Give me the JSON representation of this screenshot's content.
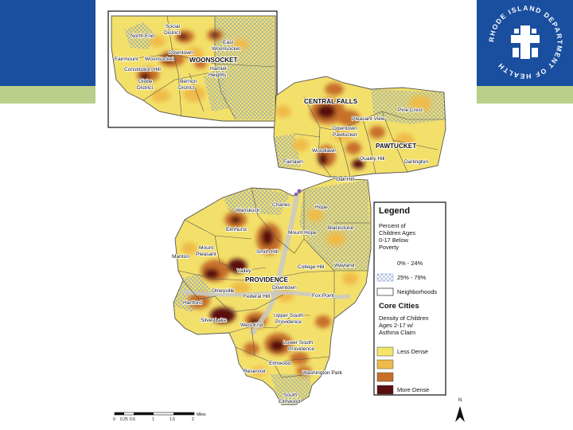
{
  "legend": {
    "title": "Legend",
    "poverty_heading": [
      "Percent of",
      "Children Ages",
      "0-17 Below",
      "Poverty"
    ],
    "poverty_items": [
      {
        "label": "0% - 24%",
        "pattern": "none"
      },
      {
        "label": "25% - 79%",
        "pattern": "crosshatch"
      },
      {
        "label": "Neighborhoods",
        "pattern": "outline"
      }
    ],
    "core_cities_label": "Core Cities",
    "density_heading": [
      "Density of Children",
      "Ages 2-17 w/",
      "Asthma Claim"
    ],
    "density_items": [
      {
        "label": "Less Dense",
        "color": "#f5e46a"
      },
      {
        "label": "",
        "color": "#f0bb4a"
      },
      {
        "label": "",
        "color": "#c7702a"
      },
      {
        "label": "More Dense",
        "color": "#5a0e0e"
      }
    ]
  },
  "inset_places": {
    "city": "WOONSOCKET",
    "neighborhoods": [
      "Social District",
      "North End",
      "East Woonsocket",
      "Downtown",
      "Fairmount",
      "Woonsocket",
      "Constitution Hill",
      "Hamlet Heights",
      "Globe District",
      "Bernon District"
    ]
  },
  "main_places": {
    "cities": [
      "CENTRAL FALLS",
      "PAWTUCKET",
      "PROVIDENCE"
    ],
    "neighborhoods": [
      "Pine Crest",
      "Pleasant View",
      "Downtown Pawtucket",
      "Woodlawn",
      "Fairlawn",
      "Quality Hill",
      "Darlington",
      "Oak Hill",
      "Charles",
      "Hope",
      "Wanskuck",
      "Elmhurst",
      "Mount Hope",
      "Blackstone",
      "Smith Hill",
      "Mount Pleasant",
      "Manton",
      "College Hill",
      "Wayland",
      "Valley",
      "Downtown",
      "Olneyville",
      "Federal Hill",
      "Fox Point",
      "Hartford",
      "Silver Lake",
      "West End",
      "Upper South Providence",
      "Lower South Providence",
      "Elmwood",
      "Reservoir",
      "Washington Park",
      "South Elmwood"
    ]
  },
  "scale_bar": {
    "ticks": [
      "0",
      "0.25",
      "0.5",
      "1",
      "1.5",
      "2"
    ],
    "unit": "Miles"
  },
  "north_arrow": "N",
  "logo": {
    "text": "RHODE ISLAND DEPARTMENT OF HEALTH"
  },
  "colors": {
    "header_blue": "#1a4fa0",
    "accent_green": "#b9cf8a",
    "base_yellow": "#f5e46a",
    "density_dark": "#5a0e0e"
  }
}
